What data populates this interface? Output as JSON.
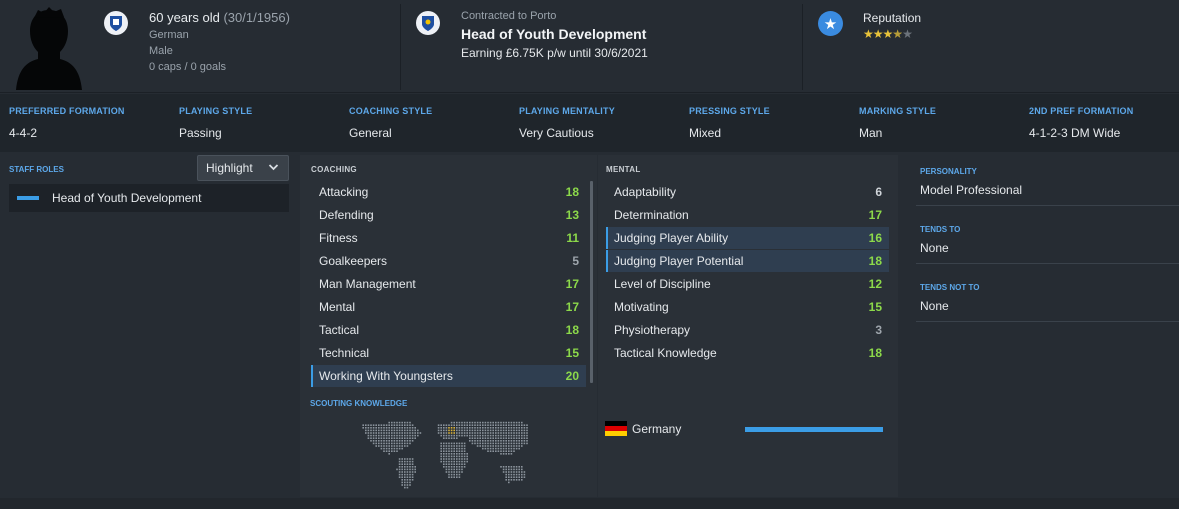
{
  "person": {
    "age_text": "60 years old",
    "dob_text": "(30/1/1956)",
    "nationality": "German",
    "gender": "Male",
    "caps_text": "0 caps / 0 goals"
  },
  "contract": {
    "club_text": "Contracted to Porto",
    "job": "Head of Youth Development",
    "earning_text": "Earning £6.75K p/w until 30/6/2021"
  },
  "reputation": {
    "label": "Reputation",
    "stars_filled": 3.5,
    "stars_total": 5
  },
  "tactics": [
    {
      "label": "PREFERRED FORMATION",
      "value": "4-4-2"
    },
    {
      "label": "PLAYING STYLE",
      "value": "Passing"
    },
    {
      "label": "COACHING STYLE",
      "value": "General"
    },
    {
      "label": "PLAYING MENTALITY",
      "value": "Very Cautious"
    },
    {
      "label": "PRESSING STYLE",
      "value": "Mixed"
    },
    {
      "label": "MARKING STYLE",
      "value": "Man"
    },
    {
      "label": "2ND PREF FORMATION",
      "value": "4-1-2-3 DM Wide"
    }
  ],
  "staff_roles": {
    "title": "STAFF ROLES",
    "dropdown_label": "Highlight",
    "roles": [
      "Head of Youth Development"
    ]
  },
  "coaching": {
    "title": "COACHING",
    "attributes": [
      {
        "name": "Attacking",
        "value": "18",
        "highlighted": false
      },
      {
        "name": "Defending",
        "value": "13",
        "highlighted": false
      },
      {
        "name": "Fitness",
        "value": "11",
        "highlighted": false
      },
      {
        "name": "Goalkeepers",
        "value": "5",
        "highlighted": false
      },
      {
        "name": "Man Management",
        "value": "17",
        "highlighted": false
      },
      {
        "name": "Mental",
        "value": "17",
        "highlighted": false
      },
      {
        "name": "Tactical",
        "value": "18",
        "highlighted": false
      },
      {
        "name": "Technical",
        "value": "15",
        "highlighted": false
      },
      {
        "name": "Working With Youngsters",
        "value": "20",
        "highlighted": true
      }
    ]
  },
  "mental": {
    "title": "MENTAL",
    "attributes": [
      {
        "name": "Adaptability",
        "value": "6",
        "highlighted": false
      },
      {
        "name": "Determination",
        "value": "17",
        "highlighted": false
      },
      {
        "name": "Judging Player Ability",
        "value": "16",
        "highlighted": true
      },
      {
        "name": "Judging Player Potential",
        "value": "18",
        "highlighted": true
      },
      {
        "name": "Level of Discipline",
        "value": "12",
        "highlighted": false
      },
      {
        "name": "Motivating",
        "value": "15",
        "highlighted": false
      },
      {
        "name": "Physiotherapy",
        "value": "3",
        "highlighted": false
      },
      {
        "name": "Tactical Knowledge",
        "value": "18",
        "highlighted": false
      }
    ]
  },
  "scouting": {
    "title": "SCOUTING KNOWLEDGE",
    "countries": [
      {
        "name": "Germany",
        "knowledge_fraction": 1.0
      }
    ]
  },
  "personality": {
    "label": "PERSONALITY",
    "value": "Model Professional",
    "tends_to_label": "TENDS TO",
    "tends_to_value": "None",
    "tends_not_to_label": "TENDS NOT TO",
    "tends_not_to_value": "None"
  },
  "colors": {
    "accent": "#3b9de6",
    "good_value": "#8cd94a",
    "star": "#e8c33a"
  }
}
